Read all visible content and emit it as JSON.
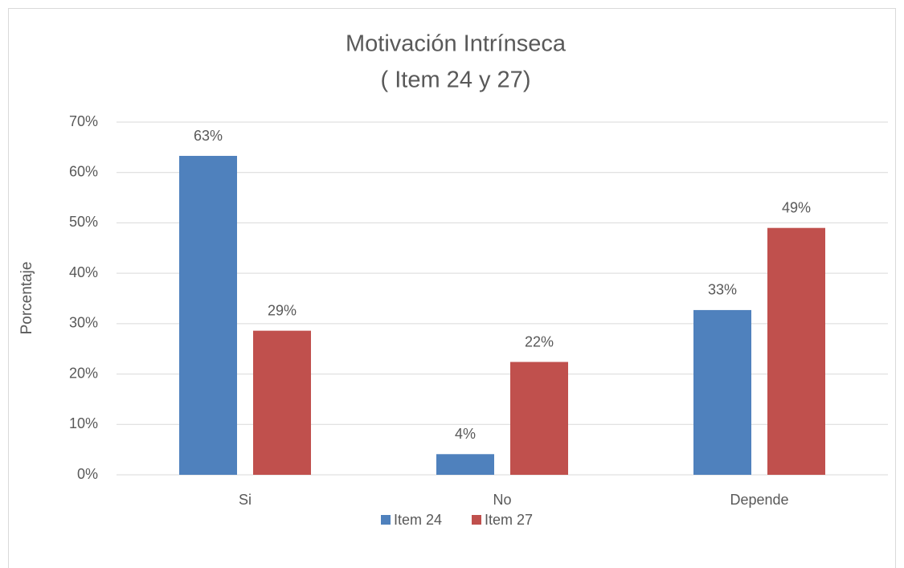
{
  "chart_data": {
    "type": "bar",
    "title": "Motivación Intrínseca",
    "subtitle": "( Item 24 y 27)",
    "y_label": "Porcentaje",
    "categories": [
      "Si",
      "No",
      "Depende"
    ],
    "series": [
      {
        "name": "Item 24",
        "color": "#4f81bd",
        "values": [
          63.3,
          4.1,
          32.7
        ],
        "value_labels": [
          "63%",
          "4%",
          "33%"
        ]
      },
      {
        "name": "Item 27",
        "color": "#c0504d",
        "values": [
          28.6,
          22.4,
          49
        ],
        "value_labels": [
          "29%",
          "22%",
          "49%"
        ]
      }
    ],
    "ylim": [
      0,
      70
    ],
    "yticks": [
      {
        "value": 0,
        "label": "0%"
      },
      {
        "value": 10,
        "label": "10%"
      },
      {
        "value": 20,
        "label": "20%"
      },
      {
        "value": 30,
        "label": "30%"
      },
      {
        "value": 40,
        "label": "40%"
      },
      {
        "value": 50,
        "label": "50%"
      },
      {
        "value": 60,
        "label": "60%"
      },
      {
        "value": 70,
        "label": "70%"
      }
    ],
    "grid": true,
    "legend": "bottom"
  }
}
